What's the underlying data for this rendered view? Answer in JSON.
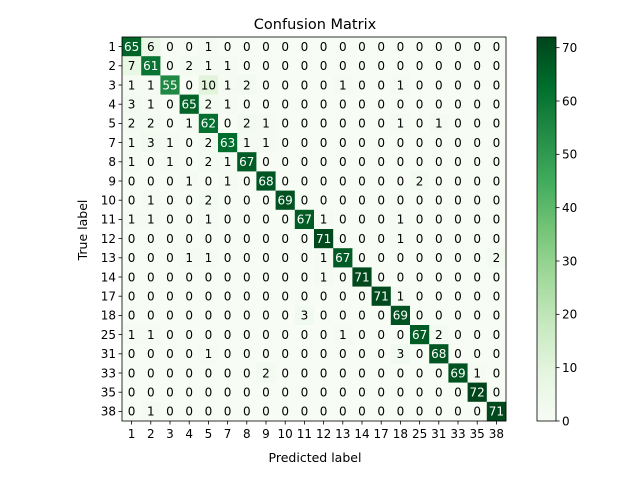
{
  "chart_data": {
    "type": "heatmap",
    "title": "Confusion Matrix",
    "xlabel": "Predicted label",
    "ylabel": "True label",
    "labels": [
      "1",
      "2",
      "3",
      "4",
      "5",
      "7",
      "8",
      "9",
      "10",
      "11",
      "12",
      "13",
      "14",
      "17",
      "18",
      "25",
      "31",
      "33",
      "35",
      "38"
    ],
    "matrix": [
      [
        65,
        6,
        0,
        0,
        1,
        0,
        0,
        0,
        0,
        0,
        0,
        0,
        0,
        0,
        0,
        0,
        0,
        0,
        0,
        0
      ],
      [
        7,
        61,
        0,
        2,
        1,
        1,
        0,
        0,
        0,
        0,
        0,
        0,
        0,
        0,
        0,
        0,
        0,
        0,
        0,
        0
      ],
      [
        1,
        1,
        55,
        0,
        10,
        1,
        2,
        0,
        0,
        0,
        0,
        1,
        0,
        0,
        1,
        0,
        0,
        0,
        0,
        0
      ],
      [
        3,
        1,
        0,
        65,
        2,
        1,
        0,
        0,
        0,
        0,
        0,
        0,
        0,
        0,
        0,
        0,
        0,
        0,
        0,
        0
      ],
      [
        2,
        2,
        0,
        1,
        62,
        0,
        2,
        1,
        0,
        0,
        0,
        0,
        0,
        0,
        1,
        0,
        1,
        0,
        0,
        0
      ],
      [
        1,
        3,
        1,
        0,
        2,
        63,
        1,
        1,
        0,
        0,
        0,
        0,
        0,
        0,
        0,
        0,
        0,
        0,
        0,
        0
      ],
      [
        1,
        0,
        1,
        0,
        2,
        1,
        67,
        0,
        0,
        0,
        0,
        0,
        0,
        0,
        0,
        0,
        0,
        0,
        0,
        0
      ],
      [
        0,
        0,
        0,
        1,
        0,
        1,
        0,
        68,
        0,
        0,
        0,
        0,
        0,
        0,
        0,
        2,
        0,
        0,
        0,
        0
      ],
      [
        0,
        1,
        0,
        0,
        2,
        0,
        0,
        0,
        69,
        0,
        0,
        0,
        0,
        0,
        0,
        0,
        0,
        0,
        0,
        0
      ],
      [
        1,
        1,
        0,
        0,
        1,
        0,
        0,
        0,
        0,
        67,
        1,
        0,
        0,
        0,
        1,
        0,
        0,
        0,
        0,
        0
      ],
      [
        0,
        0,
        0,
        0,
        0,
        0,
        0,
        0,
        0,
        0,
        71,
        0,
        0,
        0,
        1,
        0,
        0,
        0,
        0,
        0
      ],
      [
        0,
        0,
        0,
        1,
        1,
        0,
        0,
        0,
        0,
        0,
        1,
        67,
        0,
        0,
        0,
        0,
        0,
        0,
        0,
        2
      ],
      [
        0,
        0,
        0,
        0,
        0,
        0,
        0,
        0,
        0,
        0,
        1,
        0,
        71,
        0,
        0,
        0,
        0,
        0,
        0,
        0
      ],
      [
        0,
        0,
        0,
        0,
        0,
        0,
        0,
        0,
        0,
        0,
        0,
        0,
        0,
        71,
        1,
        0,
        0,
        0,
        0,
        0
      ],
      [
        0,
        0,
        0,
        0,
        0,
        0,
        0,
        0,
        0,
        3,
        0,
        0,
        0,
        0,
        69,
        0,
        0,
        0,
        0,
        0
      ],
      [
        1,
        1,
        0,
        0,
        0,
        0,
        0,
        0,
        0,
        0,
        0,
        1,
        0,
        0,
        0,
        67,
        2,
        0,
        0,
        0
      ],
      [
        0,
        0,
        0,
        0,
        1,
        0,
        0,
        0,
        0,
        0,
        0,
        0,
        0,
        0,
        3,
        0,
        68,
        0,
        0,
        0
      ],
      [
        0,
        0,
        0,
        0,
        0,
        0,
        0,
        2,
        0,
        0,
        0,
        0,
        0,
        0,
        0,
        0,
        0,
        69,
        1,
        0
      ],
      [
        0,
        0,
        0,
        0,
        0,
        0,
        0,
        0,
        0,
        0,
        0,
        0,
        0,
        0,
        0,
        0,
        0,
        0,
        72,
        0
      ],
      [
        0,
        1,
        0,
        0,
        0,
        0,
        0,
        0,
        0,
        0,
        0,
        0,
        0,
        0,
        0,
        0,
        0,
        0,
        0,
        71
      ]
    ],
    "colormap": "Greens",
    "vmin": 0,
    "vmax": 72,
    "colorbar_ticks": [
      0,
      10,
      20,
      30,
      40,
      50,
      60,
      70
    ]
  }
}
